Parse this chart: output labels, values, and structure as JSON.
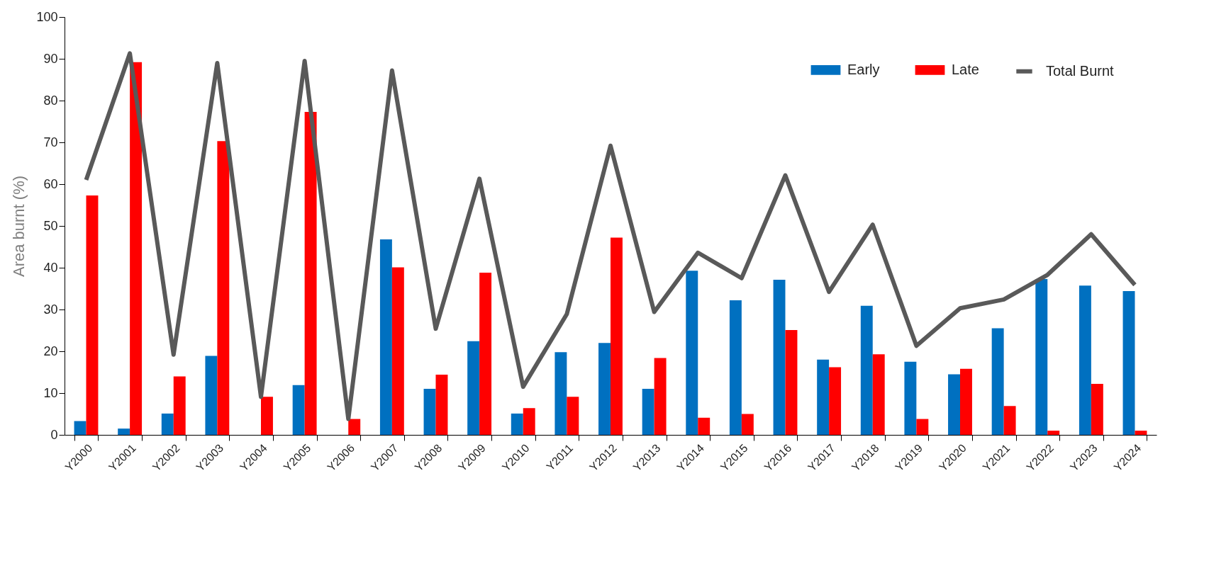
{
  "chart_data": {
    "type": "bar",
    "ylabel": "Area burnt (%)",
    "categories": [
      "Y2000",
      "Y2001",
      "Y2002",
      "Y2003",
      "Y2004",
      "Y2005",
      "Y2006",
      "Y2007",
      "Y2008",
      "Y2009",
      "Y2010",
      "Y2011",
      "Y2012",
      "Y2013",
      "Y2014",
      "Y2015",
      "Y2016",
      "Y2017",
      "Y2018",
      "Y2019",
      "Y2020",
      "Y2021",
      "Y2022",
      "Y2023",
      "Y2024"
    ],
    "series": [
      {
        "name": "Early",
        "color": "#0070c0",
        "values": [
          3.3,
          1.5,
          5.1,
          18.9,
          0,
          11.9,
          0,
          46.8,
          11,
          22.4,
          5.1,
          19.8,
          22,
          11,
          39.3,
          32.2,
          37.1,
          18,
          30.9,
          17.5,
          14.5,
          25.5,
          37.3,
          35.7,
          34.4
        ]
      },
      {
        "name": "Late",
        "color": "#ff0000",
        "values": [
          57.3,
          89.2,
          14,
          70.3,
          9.1,
          77.3,
          3.8,
          40.1,
          14.4,
          38.8,
          6.4,
          9.1,
          47.2,
          18.4,
          4.1,
          5,
          25.1,
          16.2,
          19.3,
          3.8,
          15.8,
          6.9,
          1,
          12.2,
          1
        ]
      },
      {
        "name": "Total Burnt",
        "type": "line",
        "color": "#595959",
        "values": [
          61,
          91.3,
          19.2,
          89,
          9.1,
          89.5,
          3.8,
          87.2,
          25.4,
          61.3,
          11.5,
          28.9,
          69.2,
          29.4,
          43.6,
          37.5,
          62.1,
          34.2,
          50.3,
          21.3,
          30.3,
          32.4,
          38.3,
          48,
          35.9
        ]
      }
    ],
    "ylim": [
      0,
      100
    ],
    "yticks": [
      0,
      10,
      20,
      30,
      40,
      50,
      60,
      70,
      80,
      90,
      100
    ],
    "legend": "top right"
  }
}
